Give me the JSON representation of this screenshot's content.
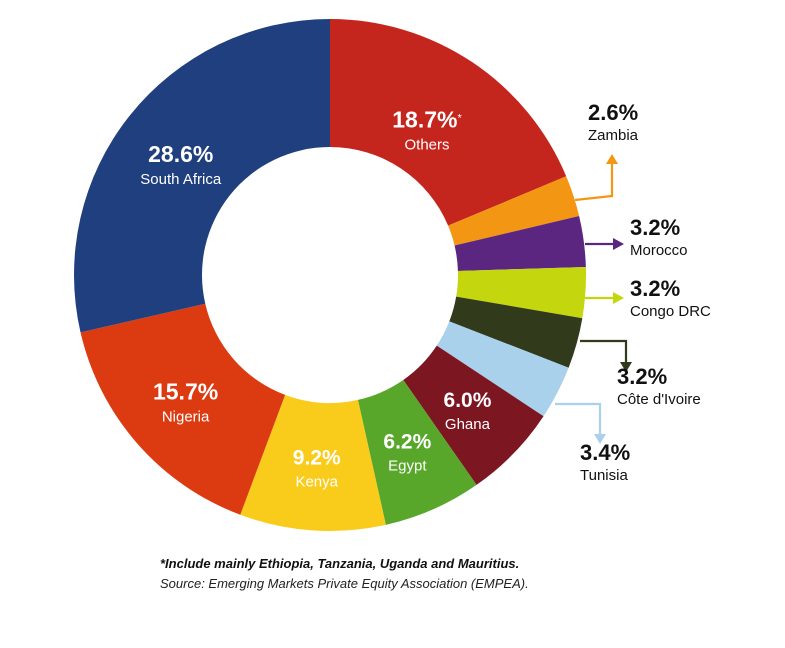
{
  "chart_data": {
    "type": "pie",
    "variant": "donut",
    "title": "",
    "slices": [
      {
        "label": "Others",
        "value": 18.7,
        "value_label": "18.7%",
        "marker": "*",
        "color": "#C4261E",
        "label_style": "inside"
      },
      {
        "label": "Zambia",
        "value": 2.6,
        "value_label": "2.6%",
        "color": "#F39614",
        "label_style": "callout"
      },
      {
        "label": "Morocco",
        "value": 3.2,
        "value_label": "3.2%",
        "color": "#5A2680",
        "label_style": "callout"
      },
      {
        "label": "Congo DRC",
        "value": 3.2,
        "value_label": "3.2%",
        "color": "#C3D60E",
        "label_style": "callout"
      },
      {
        "label": "Côte d'Ivoire",
        "value": 3.2,
        "value_label": "3.2%",
        "color": "#323A1C",
        "label_style": "callout"
      },
      {
        "label": "Tunisia",
        "value": 3.4,
        "value_label": "3.4%",
        "color": "#A9D1EC",
        "label_style": "callout"
      },
      {
        "label": "Ghana",
        "value": 6.0,
        "value_label": "6.0%",
        "color": "#7C1621",
        "label_style": "inside"
      },
      {
        "label": "Egypt",
        "value": 6.2,
        "value_label": "6.2%",
        "color": "#58A72A",
        "label_style": "inside"
      },
      {
        "label": "Kenya",
        "value": 9.2,
        "value_label": "9.2%",
        "color": "#F9CB1B",
        "label_style": "inside"
      },
      {
        "label": "Nigeria",
        "value": 15.7,
        "value_label": "15.7%",
        "color": "#DC3B12",
        "label_style": "inside"
      },
      {
        "label": "South Africa",
        "value": 28.6,
        "value_label": "28.6%",
        "color": "#1F3F7E",
        "label_style": "inside"
      }
    ],
    "start_angle": "12 o'clock",
    "direction": "clockwise",
    "legend": "none"
  },
  "notes": {
    "footnote": "*Include mainly Ethiopia, Tanzania, Uganda and Mauritius.",
    "source": "Source: Emerging Markets Private Equity Association (EMPEA)."
  }
}
